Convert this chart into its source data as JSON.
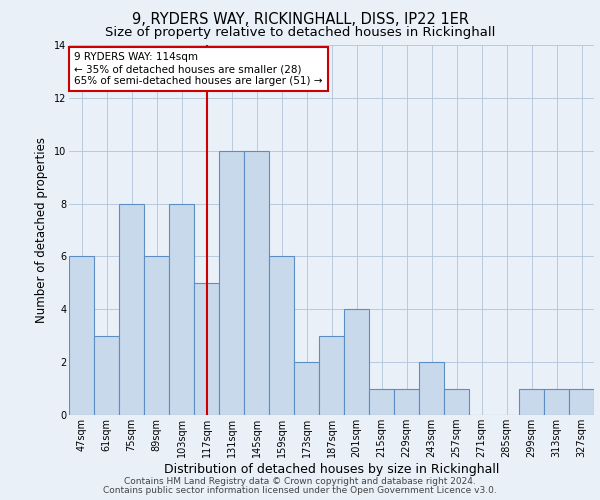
{
  "title": "9, RYDERS WAY, RICKINGHALL, DISS, IP22 1ER",
  "subtitle": "Size of property relative to detached houses in Rickinghall",
  "xlabel": "Distribution of detached houses by size in Rickinghall",
  "ylabel": "Number of detached properties",
  "categories": [
    "47sqm",
    "61sqm",
    "75sqm",
    "89sqm",
    "103sqm",
    "117sqm",
    "131sqm",
    "145sqm",
    "159sqm",
    "173sqm",
    "187sqm",
    "201sqm",
    "215sqm",
    "229sqm",
    "243sqm",
    "257sqm",
    "271sqm",
    "285sqm",
    "299sqm",
    "313sqm",
    "327sqm"
  ],
  "values": [
    6,
    3,
    8,
    6,
    8,
    5,
    10,
    10,
    6,
    2,
    3,
    4,
    1,
    1,
    2,
    1,
    0,
    0,
    1,
    1,
    1
  ],
  "bar_color": "#c9d9ec",
  "bar_edgecolor": "#5b8fc4",
  "bar_linewidth": 0.8,
  "vline_x_index": 5,
  "vline_color": "#cc0000",
  "annotation_title": "9 RYDERS WAY: 114sqm",
  "annotation_line1": "← 35% of detached houses are smaller (28)",
  "annotation_line2": "65% of semi-detached houses are larger (51) →",
  "annotation_box_color": "#ffffff",
  "annotation_box_edgecolor": "#cc0000",
  "ylim": [
    0,
    14
  ],
  "yticks": [
    0,
    2,
    4,
    6,
    8,
    10,
    12,
    14
  ],
  "background_color": "#eaf0f8",
  "grid_color": "#b0c4d8",
  "footer_line1": "Contains HM Land Registry data © Crown copyright and database right 2024.",
  "footer_line2": "Contains public sector information licensed under the Open Government Licence v3.0.",
  "title_fontsize": 10.5,
  "subtitle_fontsize": 9.5,
  "xlabel_fontsize": 9,
  "ylabel_fontsize": 8.5,
  "tick_fontsize": 7,
  "annotation_fontsize": 7.5,
  "footer_fontsize": 6.5
}
